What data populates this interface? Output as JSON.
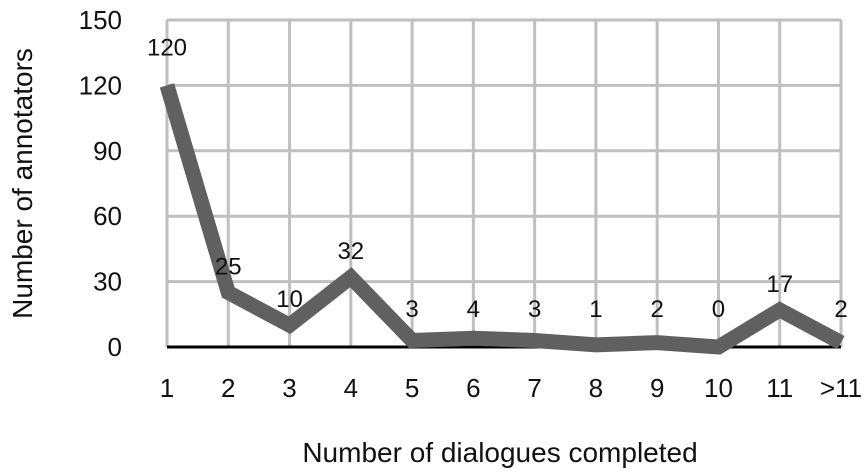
{
  "chart_data": {
    "type": "line",
    "title": "",
    "xlabel": "Number of dialogues completed",
    "ylabel": "Number of annotators",
    "categories": [
      "1",
      "2",
      "3",
      "4",
      "5",
      "6",
      "7",
      "8",
      "9",
      "10",
      "11",
      ">11"
    ],
    "series": [
      {
        "values": [
          120,
          25,
          10,
          32,
          3,
          4,
          3,
          1,
          2,
          0,
          17,
          2
        ]
      }
    ],
    "data_labels": [
      "120",
      "25",
      "10",
      "32",
      "3",
      "4",
      "3",
      "1",
      "2",
      "0",
      "17",
      "2"
    ],
    "ylim": [
      0,
      150
    ],
    "yticks": [
      0,
      30,
      60,
      90,
      120,
      150
    ],
    "grid": true,
    "legend": "none",
    "colors": {
      "line": "#606060",
      "grid": "#bfbfbf",
      "axis": "#000000"
    }
  }
}
